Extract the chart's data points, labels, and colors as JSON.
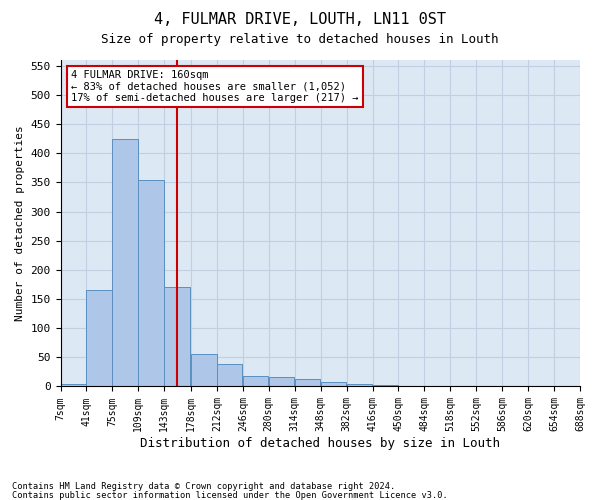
{
  "title": "4, FULMAR DRIVE, LOUTH, LN11 0ST",
  "subtitle": "Size of property relative to detached houses in Louth",
  "xlabel": "Distribution of detached houses by size in Louth",
  "ylabel": "Number of detached properties",
  "footer_line1": "Contains HM Land Registry data © Crown copyright and database right 2024.",
  "footer_line2": "Contains public sector information licensed under the Open Government Licence v3.0.",
  "annotation_line1": "4 FULMAR DRIVE: 160sqm",
  "annotation_line2": "← 83% of detached houses are smaller (1,052)",
  "annotation_line3": "17% of semi-detached houses are larger (217) →",
  "property_size": 160,
  "bin_edges": [
    7,
    41,
    75,
    109,
    143,
    178,
    212,
    246,
    280,
    314,
    348,
    382,
    416,
    450,
    484,
    518,
    552,
    586,
    620,
    654,
    688
  ],
  "bin_counts": [
    5,
    165,
    425,
    355,
    170,
    55,
    38,
    18,
    17,
    13,
    8,
    5,
    3,
    1,
    0,
    0,
    1,
    0,
    0,
    1
  ],
  "bar_color": "#aec6e8",
  "bar_edge_color": "#5a8fc0",
  "redline_color": "#cc0000",
  "annotation_box_edgecolor": "#cc0000",
  "grid_color": "#c0d0e0",
  "background_color": "#dce8f3",
  "ylim": [
    0,
    560
  ],
  "yticks": [
    0,
    50,
    100,
    150,
    200,
    250,
    300,
    350,
    400,
    450,
    500,
    550
  ]
}
